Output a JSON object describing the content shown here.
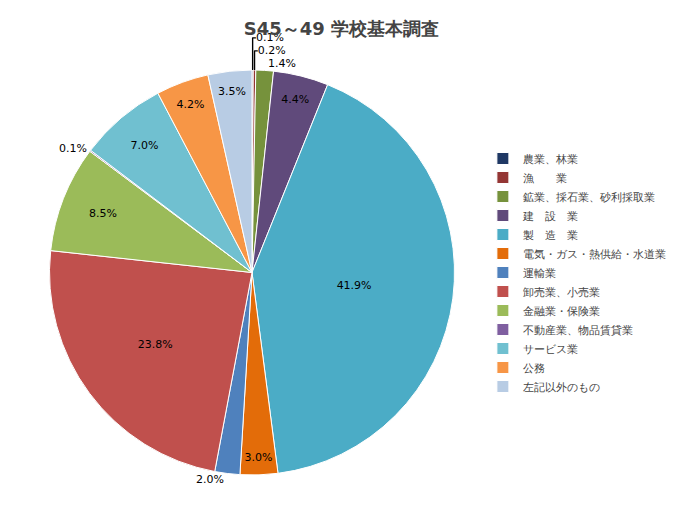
{
  "chart_data": {
    "type": "pie",
    "title": "S45～49 学校基本調査",
    "categories": [
      "農業、林業",
      "漁　　業",
      "鉱業、採石業、砂利採取業",
      "建　設　業",
      "製　造　業",
      "電気・ガス・熱供給・水道業",
      "運輸業",
      "卸売業、小売業",
      "金融業・保険業",
      "不動産業、物品賃貸業",
      "サービス業",
      "公務",
      "左記以外のもの"
    ],
    "values": [
      0.1,
      0.2,
      1.4,
      4.4,
      41.9,
      3.0,
      2.0,
      23.8,
      8.5,
      0.1,
      7.0,
      4.2,
      3.5
    ],
    "value_labels": [
      "0.1%",
      "0.2%",
      "1.4%",
      "4.4%",
      "41.9%",
      "3.0%",
      "2.0%",
      "23.8%",
      "8.5%",
      "0.1%",
      "7.0%",
      "4.2%",
      "3.5%"
    ],
    "colors": [
      "#1F3864",
      "#943634",
      "#76923C",
      "#604A7B",
      "#4BACC6",
      "#E36C09",
      "#4F81BD",
      "#C0504D",
      "#9BBB59",
      "#7F5FA0",
      "#70C0D0",
      "#F79646",
      "#B8CCE4"
    ],
    "data_labels": true,
    "legend": "right"
  }
}
